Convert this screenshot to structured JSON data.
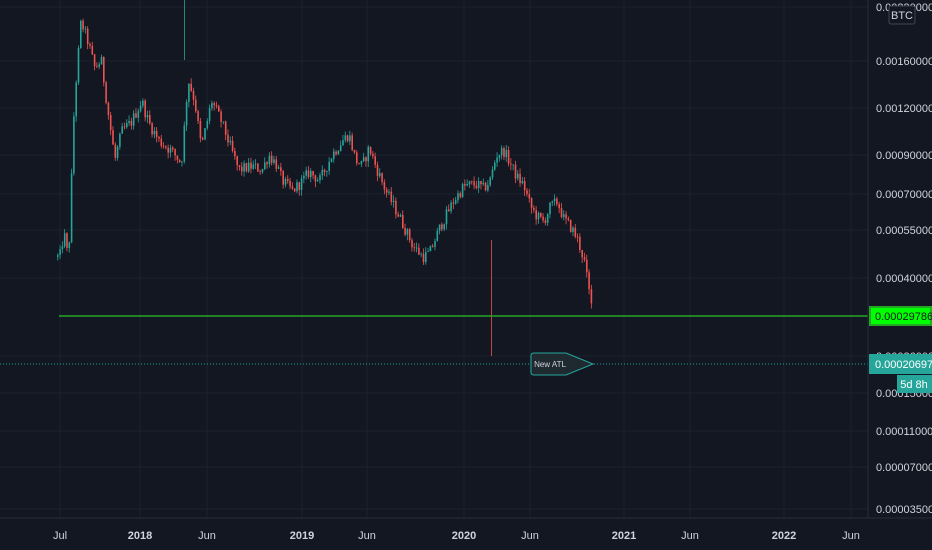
{
  "chart_data": {
    "type": "candlestick",
    "price_axis": {
      "scale": "log",
      "ticks": [
        "0.00230000",
        "0.00160000",
        "0.00120000",
        "0.00090000",
        "0.00070000",
        "0.00055000",
        "0.00040000",
        "0.00026000",
        "0.00015000",
        "0.00011000",
        "0.00007000",
        "0.00003500"
      ],
      "hidden_tick_values": [
        "0.00230000",
        "0.00026000",
        "0.00015000"
      ]
    },
    "time_axis": {
      "ticks": [
        "Jul",
        "2018",
        "Jun",
        "2019",
        "Jun",
        "2020",
        "Jun",
        "2021",
        "Jun",
        "2022",
        "Jun"
      ],
      "bold_ticks": [
        "2018",
        "2019",
        "2020",
        "2021",
        "2022"
      ]
    },
    "currency_label": "BTC",
    "support_level": {
      "value": "0.00029786",
      "color": "#26a626"
    },
    "last_price": {
      "value": "0.00020697",
      "color": "#26a69a"
    },
    "countdown": "5d 8h",
    "annotation": {
      "text": "New ATL",
      "price": "0.00020697"
    },
    "colors": {
      "up": "#26a69a",
      "down": "#ef5350",
      "background": "#131722"
    },
    "price_path": [
      [
        "2017-07",
        0.00031
      ],
      [
        "2017-07",
        0.00038
      ],
      [
        "2017-07",
        0.0003
      ],
      [
        "2017-08",
        0.0012
      ],
      [
        "2017-08",
        0.0024
      ],
      [
        "2017-09",
        0.002
      ],
      [
        "2017-09",
        0.0016
      ],
      [
        "2017-10",
        0.0017
      ],
      [
        "2017-10",
        0.0011
      ],
      [
        "2017-11",
        0.00072
      ],
      [
        "2017-11",
        0.00092
      ],
      [
        "2017-12",
        0.001
      ],
      [
        "2018-01",
        0.0012
      ],
      [
        "2018-01",
        0.001
      ],
      [
        "2018-02",
        0.00085
      ],
      [
        "2018-03",
        0.00078
      ],
      [
        "2018-04",
        0.0007
      ],
      [
        "2018-04",
        0.00145
      ],
      [
        "2018-05",
        0.0012
      ],
      [
        "2018-05",
        0.0008
      ],
      [
        "2018-06",
        0.0012
      ],
      [
        "2018-07",
        0.001
      ],
      [
        "2018-07",
        0.00085
      ],
      [
        "2018-08",
        0.00066
      ],
      [
        "2018-09",
        0.00068
      ],
      [
        "2018-10",
        0.00066
      ],
      [
        "2018-10",
        0.00075
      ],
      [
        "2018-11",
        0.0007
      ],
      [
        "2018-11",
        0.0006
      ],
      [
        "2018-12",
        0.00055
      ],
      [
        "2019-01",
        0.0006
      ],
      [
        "2019-01",
        0.00065
      ],
      [
        "2019-02",
        0.0006
      ],
      [
        "2019-03",
        0.00075
      ],
      [
        "2019-04",
        0.00085
      ],
      [
        "2019-04",
        0.0009
      ],
      [
        "2019-05",
        0.00072
      ],
      [
        "2019-05",
        0.00068
      ],
      [
        "2019-06",
        0.0008
      ],
      [
        "2019-06",
        0.00068
      ],
      [
        "2019-07",
        0.00055
      ],
      [
        "2019-08",
        0.00044
      ],
      [
        "2019-09",
        0.00034
      ],
      [
        "2019-10",
        0.00031
      ],
      [
        "2019-10",
        0.00032
      ],
      [
        "2019-11",
        0.0004
      ],
      [
        "2019-12",
        0.0005
      ],
      [
        "2020-01",
        0.00057
      ],
      [
        "2020-01",
        0.00058
      ],
      [
        "2020-02",
        0.00058
      ],
      [
        "2020-02",
        0.00056
      ],
      [
        "2020-03",
        0.0006
      ],
      [
        "2020-03",
        0.00075
      ],
      [
        "2020-04",
        0.00078
      ],
      [
        "2020-04",
        0.0007
      ],
      [
        "2020-05",
        0.00062
      ],
      [
        "2020-05",
        0.00058
      ],
      [
        "2020-06",
        0.00048
      ],
      [
        "2020-06",
        0.00044
      ],
      [
        "2020-07",
        0.00042
      ],
      [
        "2020-07",
        0.00048
      ],
      [
        "2020-08",
        0.0005
      ],
      [
        "2020-08",
        0.00043
      ],
      [
        "2020-09",
        0.0004
      ],
      [
        "2020-09",
        0.00036
      ],
      [
        "2020-10",
        0.0003
      ],
      [
        "2020-10",
        0.00020697
      ]
    ]
  }
}
